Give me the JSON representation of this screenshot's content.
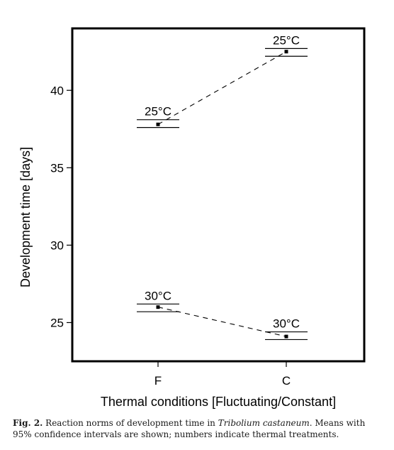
{
  "chart_data": {
    "type": "line",
    "xlabel": "Thermal conditions [Fluctuating/Constant]",
    "ylabel": "Development time [days]",
    "categories": [
      "F",
      "C"
    ],
    "ylim": [
      22.5,
      44.0
    ],
    "yticks": [
      25,
      30,
      35,
      40
    ],
    "grid": false,
    "series": [
      {
        "name": "25°C",
        "values": [
          37.8,
          42.5
        ],
        "ci_low": [
          37.6,
          42.2
        ],
        "ci_high": [
          38.1,
          42.7
        ],
        "labels": [
          "25°C",
          "25°C"
        ]
      },
      {
        "name": "30°C",
        "values": [
          26.0,
          24.1
        ],
        "ci_low": [
          25.7,
          23.9
        ],
        "ci_high": [
          26.2,
          24.4
        ],
        "labels": [
          "30°C",
          "30°C"
        ]
      }
    ]
  },
  "caption": {
    "label": "Fig. 2.",
    "text_before": " Reaction norms of development time in ",
    "species": "Tribolium castaneum",
    "text_after": ". Means with 95% confidence intervals are shown; numbers indicate thermal treatments."
  }
}
